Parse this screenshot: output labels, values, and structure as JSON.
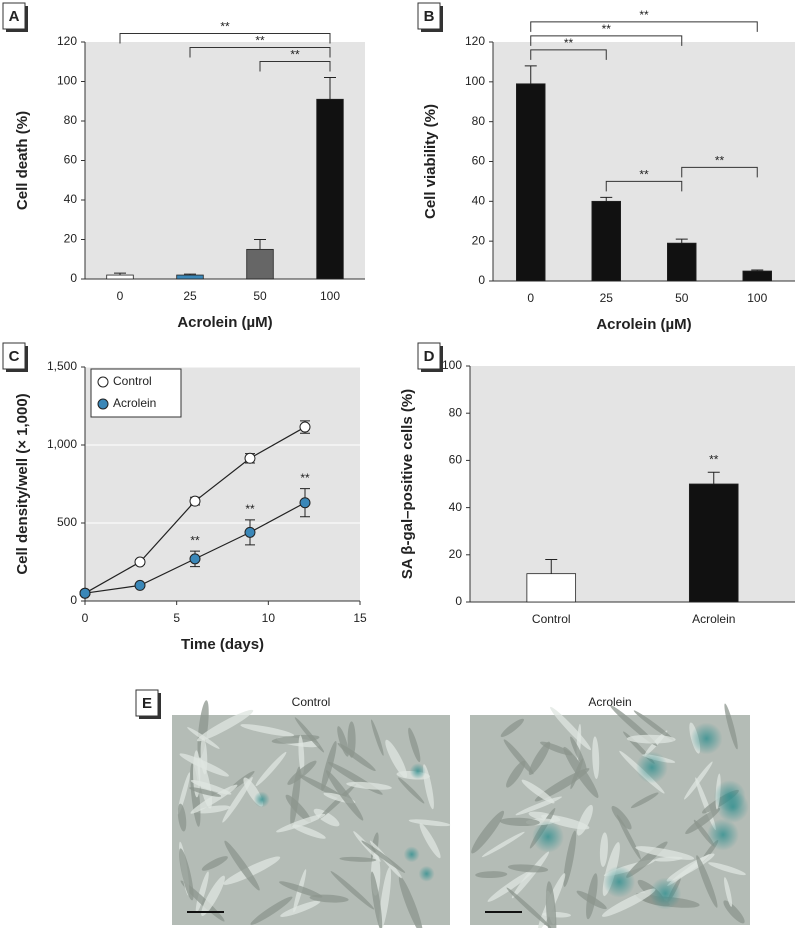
{
  "chart_data": [
    {
      "type": "bar",
      "panel": "A",
      "xlabel": "Acrolein (µM)",
      "ylabel": "Cell death (%)",
      "categories": [
        "0",
        "25",
        "50",
        "100"
      ],
      "values": [
        2,
        2,
        15,
        91
      ],
      "errors": [
        1,
        0.5,
        5,
        11
      ],
      "colors": [
        "#ffffff",
        "#3a87b8",
        "#666666",
        "#111111"
      ],
      "ylim": [
        0,
        120
      ],
      "yticks": [
        0,
        20,
        40,
        60,
        80,
        100,
        120
      ],
      "grid": false,
      "brackets": [
        {
          "between": [
            "50",
            "100"
          ],
          "text": "**"
        },
        {
          "between": [
            "25",
            "100"
          ],
          "text": "**"
        },
        {
          "between": [
            "0",
            "100"
          ],
          "text": "**"
        }
      ]
    },
    {
      "type": "bar",
      "panel": "B",
      "xlabel": "Acrolein (µM)",
      "ylabel": "Cell viability (%)",
      "categories": [
        "0",
        "25",
        "50",
        "100"
      ],
      "values": [
        99,
        40,
        19,
        5
      ],
      "errors": [
        9,
        2,
        2,
        0.5
      ],
      "colors": [
        "#111111",
        "#111111",
        "#111111",
        "#111111"
      ],
      "ylim": [
        0,
        120
      ],
      "yticks": [
        0,
        20,
        40,
        60,
        80,
        100,
        120
      ],
      "grid": false,
      "brackets": [
        {
          "between": [
            "25",
            "50"
          ],
          "text": "**"
        },
        {
          "between": [
            "50",
            "100"
          ],
          "text": "**"
        },
        {
          "between": [
            "0",
            "25"
          ],
          "text": "**"
        },
        {
          "between": [
            "0",
            "50"
          ],
          "text": "**"
        },
        {
          "between": [
            "0",
            "100"
          ],
          "text": "**"
        }
      ]
    },
    {
      "type": "line",
      "panel": "C",
      "xlabel": "Time (days)",
      "ylabel": "Cell density/well (× 1,000)",
      "x": [
        0,
        3,
        6,
        9,
        12
      ],
      "series": [
        {
          "name": "Control",
          "color": "#ffffff",
          "values": [
            50,
            250,
            640,
            915,
            1115
          ],
          "errors": [
            0,
            15,
            25,
            30,
            40
          ]
        },
        {
          "name": "Acrolein",
          "color": "#3a87b8",
          "values": [
            50,
            100,
            270,
            440,
            630
          ],
          "errors": [
            0,
            10,
            50,
            80,
            90
          ]
        }
      ],
      "xlim": [
        0,
        15
      ],
      "xticks": [
        0,
        5,
        10,
        15
      ],
      "ylim": [
        0,
        1500
      ],
      "yticks": [
        0,
        500,
        {
          "value": 1000,
          "label": "1,000"
        },
        {
          "value": 1500,
          "label": "1,500"
        }
      ],
      "grid": true,
      "legend": "top-left",
      "annotations": [
        {
          "series": "Acrolein",
          "x": 6,
          "text": "**"
        },
        {
          "series": "Acrolein",
          "x": 9,
          "text": "**"
        },
        {
          "series": "Acrolein",
          "x": 12,
          "text": "**"
        }
      ]
    },
    {
      "type": "bar",
      "panel": "D",
      "ylabel": "SA β-gal–positive cells (%)",
      "categories": [
        "Control",
        "Acrolein"
      ],
      "values": [
        12,
        50
      ],
      "errors": [
        6,
        5
      ],
      "colors": [
        "#ffffff",
        "#111111"
      ],
      "ylim": [
        0,
        100
      ],
      "yticks": [
        0,
        20,
        40,
        60,
        80,
        100
      ],
      "grid": false,
      "annotations": [
        {
          "category": "Acrolein",
          "text": "**"
        }
      ]
    }
  ],
  "panel_e": {
    "label": "E",
    "images": [
      {
        "caption": "Control"
      },
      {
        "caption": "Acrolein"
      }
    ]
  }
}
